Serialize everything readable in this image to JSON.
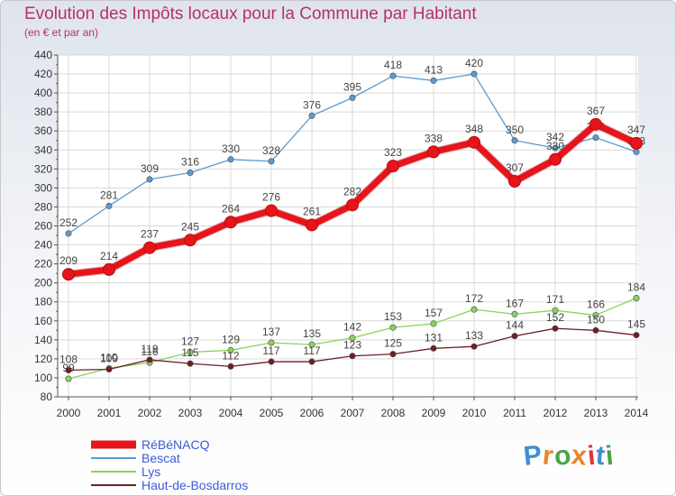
{
  "header": {
    "title": "Evolution des Impôts locaux pour la Commune par Habitant",
    "subtitle": "(en € et par an)"
  },
  "logo": {
    "text": "Proxiti",
    "colors": [
      "#3f8fd2",
      "#e8842a",
      "#49a447",
      "#e8842a",
      "#d9383a",
      "#3f8fd2",
      "#49a447"
    ]
  },
  "chart_data": {
    "type": "line",
    "title": "Evolution des Impôts locaux pour la Commune par Habitant",
    "subtitle": "(en € et par an)",
    "xlabel": "",
    "ylabel": "",
    "x": [
      "2000",
      "2001",
      "2002",
      "2003",
      "2004",
      "2005",
      "2006",
      "2007",
      "2008",
      "2009",
      "2010",
      "2011",
      "2012",
      "2013",
      "2014"
    ],
    "ylim": [
      80,
      440
    ],
    "yticks": [
      80,
      100,
      120,
      140,
      160,
      180,
      200,
      220,
      240,
      260,
      280,
      300,
      320,
      340,
      360,
      380,
      400,
      420,
      440
    ],
    "grid": true,
    "legend_position": "bottom-left",
    "series": [
      {
        "name": "RéBéNACQ",
        "color": "#e8141b",
        "values": [
          209,
          214,
          237,
          245,
          264,
          276,
          261,
          282,
          323,
          338,
          348,
          307,
          330,
          367,
          347
        ],
        "labels": [
          "209",
          "214",
          "237",
          "245",
          "264",
          "276",
          "261",
          "282",
          "323",
          "338",
          "348",
          "307",
          "330",
          "367",
          "347"
        ]
      },
      {
        "name": "Bescat",
        "color": "#5b9bd0",
        "values": [
          252,
          281,
          309,
          316,
          330,
          328,
          376,
          395,
          418,
          413,
          420,
          350,
          342,
          353,
          338
        ],
        "labels": [
          "252",
          "281",
          "309",
          "316",
          "330",
          "328",
          "376",
          "395",
          "418",
          "413",
          "420",
          "350",
          "342",
          "353",
          "338"
        ]
      },
      {
        "name": "Lys",
        "color": "#88d45c",
        "values": [
          99,
          110,
          116,
          127,
          129,
          137,
          135,
          142,
          153,
          157,
          172,
          167,
          171,
          166,
          184
        ],
        "labels": [
          "99",
          "110",
          "116",
          "127",
          "129",
          "137",
          "135",
          "142",
          "153",
          "157",
          "172",
          "167",
          "171",
          "166",
          "184"
        ]
      },
      {
        "name": "Haut-de-Bosdarros",
        "color": "#6e1f24",
        "values": [
          108,
          109,
          119,
          115,
          112,
          117,
          117,
          123,
          125,
          131,
          133,
          144,
          152,
          150,
          145
        ],
        "labels": [
          "108",
          "109",
          "119",
          "115",
          "112",
          "117",
          "117",
          "123",
          "125",
          "131",
          "133",
          "144",
          "152",
          "150",
          "145"
        ]
      }
    ]
  }
}
